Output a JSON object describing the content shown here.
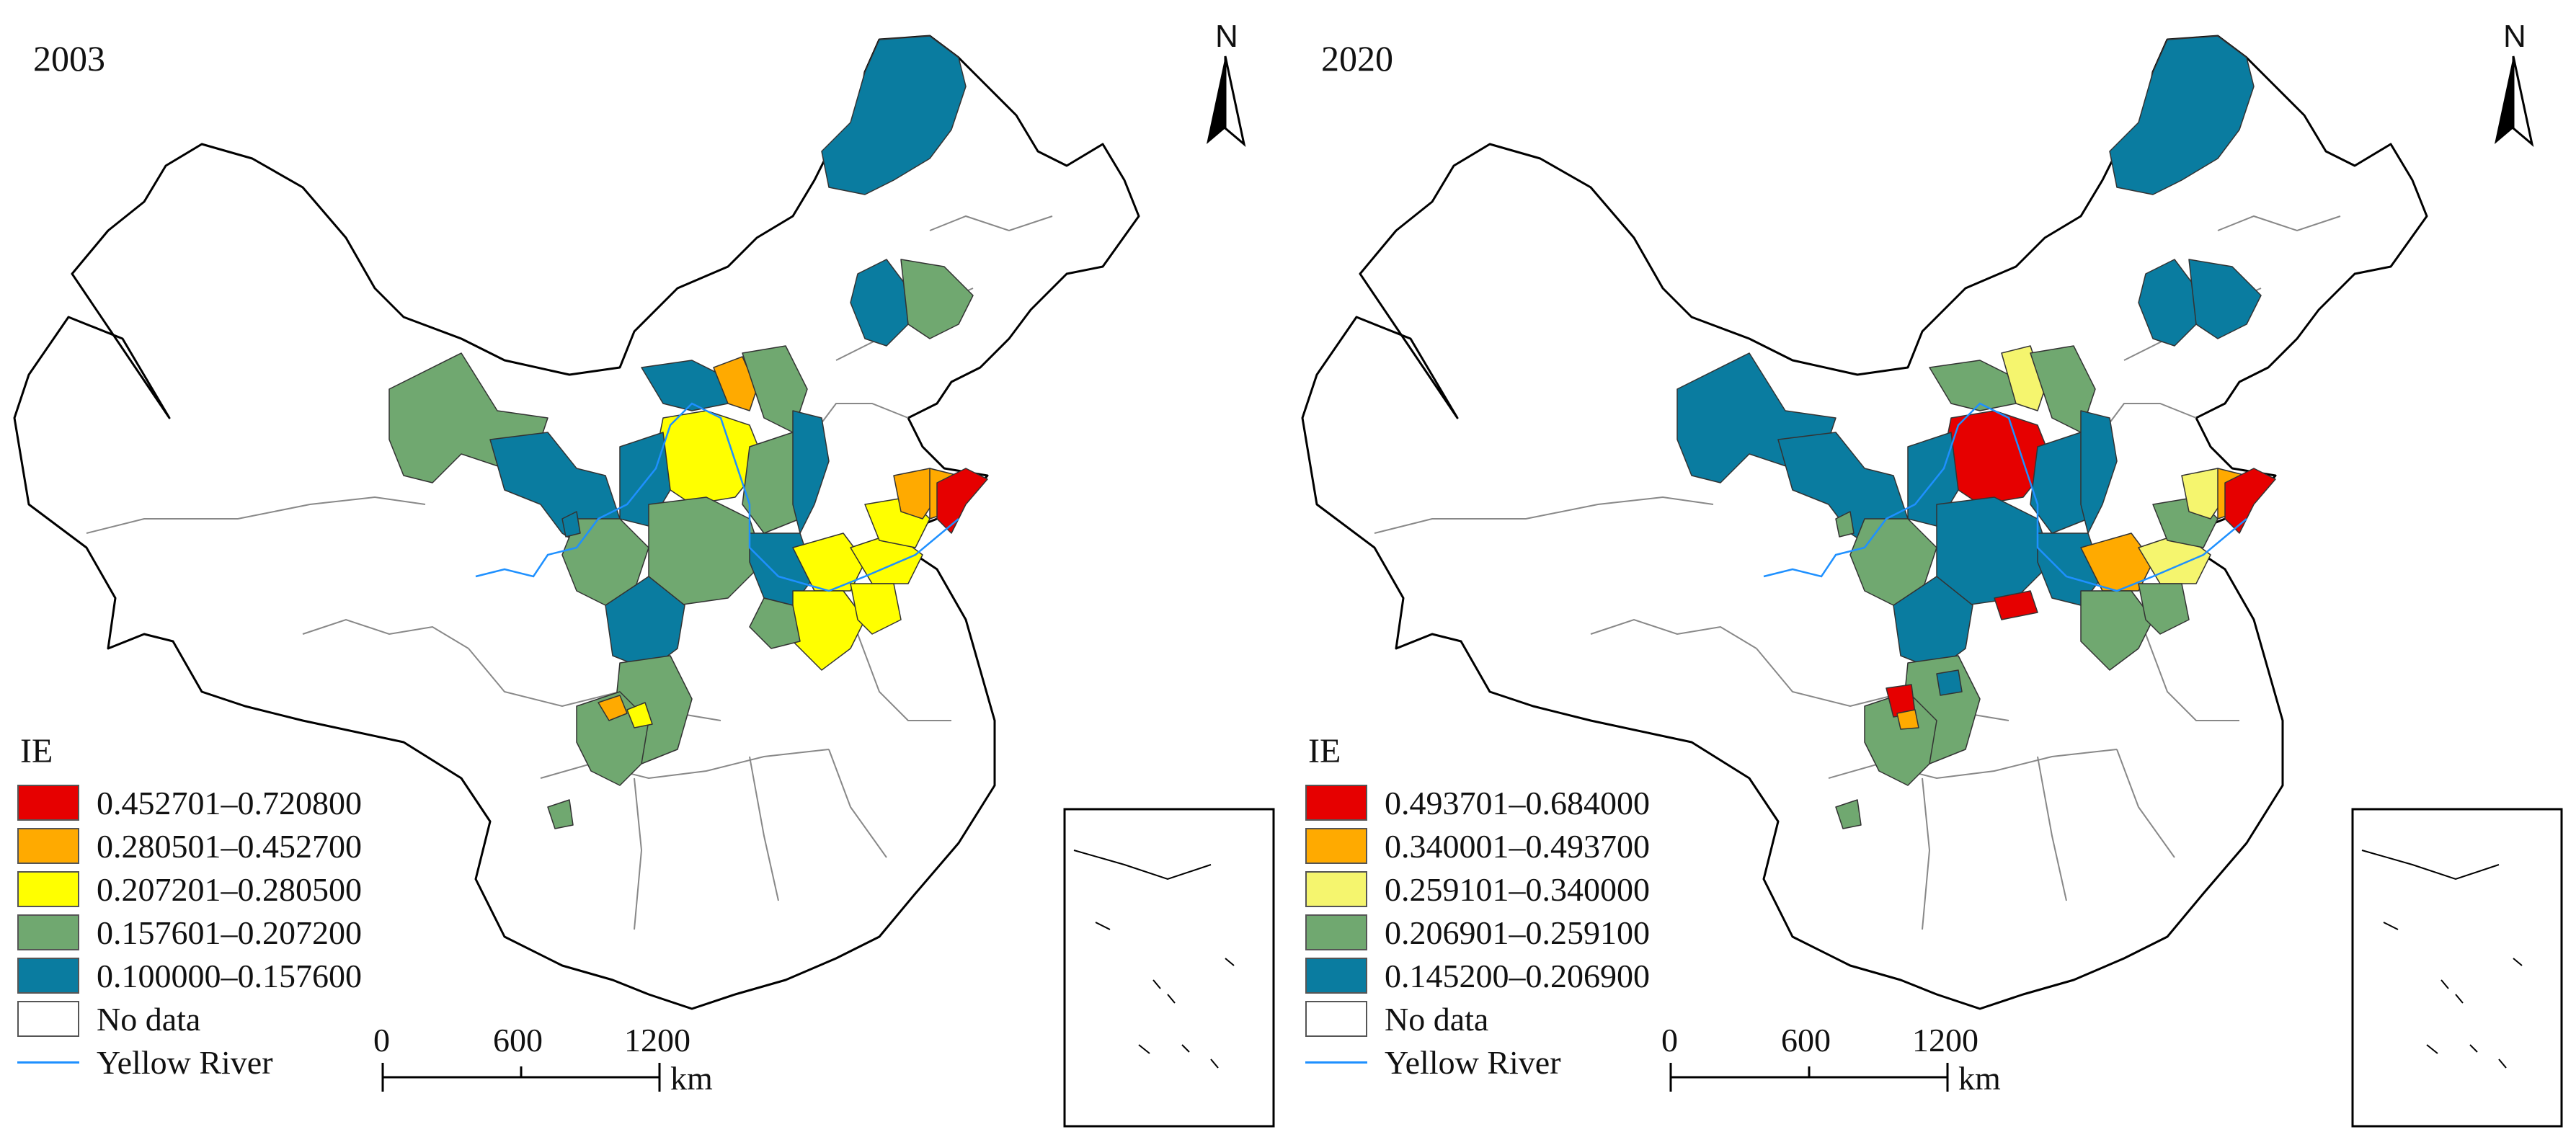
{
  "panels": [
    {
      "year": "2003",
      "legend": {
        "title": "IE",
        "classes": [
          {
            "label": "0.452701–0.720800",
            "color": "#e60000"
          },
          {
            "label": "0.280501–0.452700",
            "color": "#ffaa00"
          },
          {
            "label": "0.207201–0.280500",
            "color": "#ffff00"
          },
          {
            "label": "0.157601–0.207200",
            "color": "#70a870"
          },
          {
            "label": "0.100000–0.157600",
            "color": "#0a7ca0"
          }
        ],
        "no_data": "No data",
        "river": "Yellow River"
      },
      "scale": {
        "ticks": [
          "0",
          "600",
          "1200"
        ],
        "unit": "km"
      },
      "north": "N"
    },
    {
      "year": "2020",
      "legend": {
        "title": "IE",
        "classes": [
          {
            "label": "0.493701–0.684000",
            "color": "#e60000"
          },
          {
            "label": "0.340001–0.493700",
            "color": "#ffaa00"
          },
          {
            "label": "0.259101–0.340000",
            "color": "#f5f56e"
          },
          {
            "label": "0.206901–0.259100",
            "color": "#70a870"
          },
          {
            "label": "0.145200–0.206900",
            "color": "#0a7ca0"
          }
        ],
        "no_data": "No data",
        "river": "Yellow River"
      },
      "scale": {
        "ticks": [
          "0",
          "600",
          "1200"
        ],
        "unit": "km"
      },
      "north": "N"
    }
  ]
}
